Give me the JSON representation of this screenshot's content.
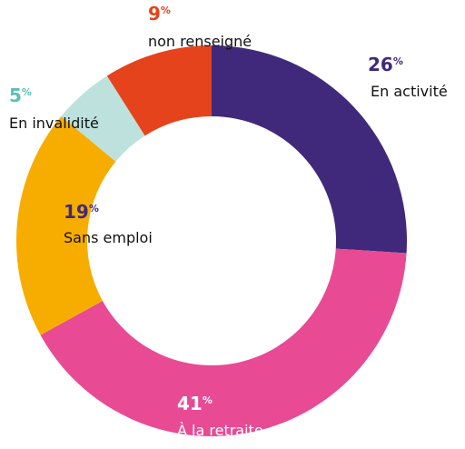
{
  "chart_data": {
    "type": "donut",
    "categories": [
      "En activité",
      "À la retraite",
      "Sans emploi",
      "En invalidité",
      "non renseigné"
    ],
    "values": [
      26,
      41,
      19,
      5,
      9
    ],
    "unit": "%",
    "colors": [
      "#40297a",
      "#e84a93",
      "#f7ad00",
      "#bde2dd",
      "#e5431c"
    ],
    "value_label_colors": [
      "#40297a",
      "#ffffff",
      "#40297a",
      "#5bbfb5",
      "#e5431c"
    ],
    "name_colors": [
      "#111111",
      "#ffffff",
      "#111111",
      "#111111",
      "#111111"
    ]
  }
}
